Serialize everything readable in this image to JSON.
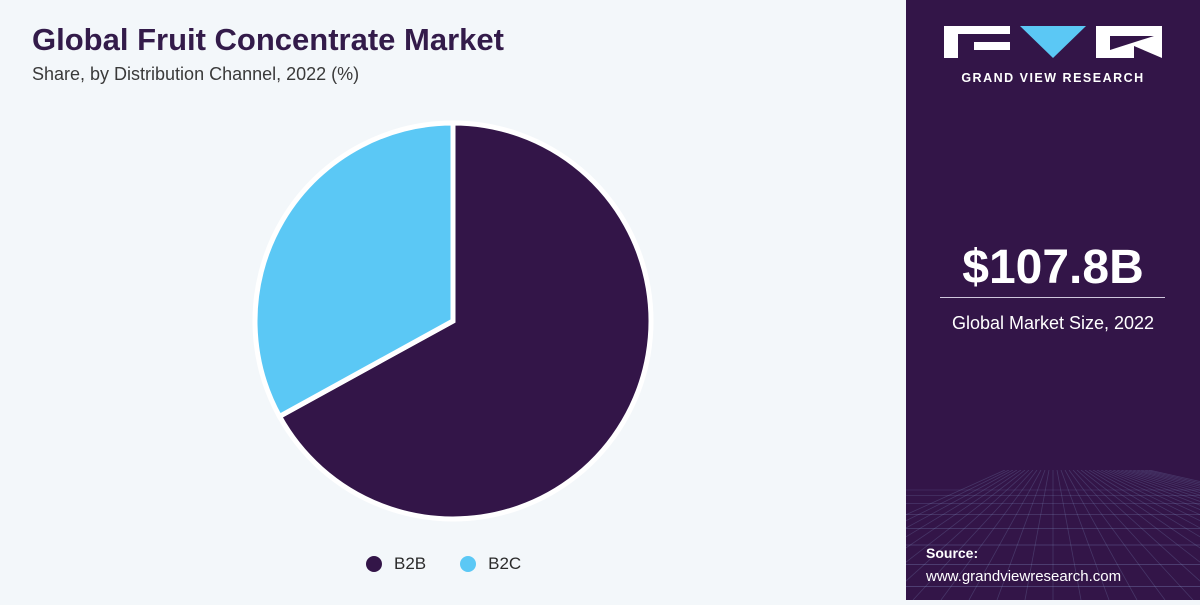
{
  "header": {
    "title": "Global Fruit Concentrate Market",
    "subtitle": "Share, by Distribution Channel, 2022 (%)"
  },
  "chart_data": {
    "type": "pie",
    "title": "Global Fruit Concentrate Market",
    "subtitle": "Share, by Distribution Channel, 2022 (%)",
    "categories": [
      "B2B",
      "B2C"
    ],
    "values": [
      67,
      33
    ],
    "colors": [
      "#331548",
      "#5bc8f5"
    ],
    "start_angle_deg": 0,
    "direction": "clockwise",
    "legend_position": "bottom"
  },
  "legend": {
    "items": [
      {
        "label": "B2B",
        "color": "#331548"
      },
      {
        "label": "B2C",
        "color": "#5bc8f5"
      }
    ]
  },
  "sidebar": {
    "brand": "GRAND VIEW RESEARCH",
    "market_size": "$107.8B",
    "market_size_label": "Global Market Size, 2022",
    "source_label": "Source:",
    "source_url": "www.grandviewresearch.com",
    "background_color": "#331548",
    "logo_accent_color": "#5bc8f5"
  }
}
